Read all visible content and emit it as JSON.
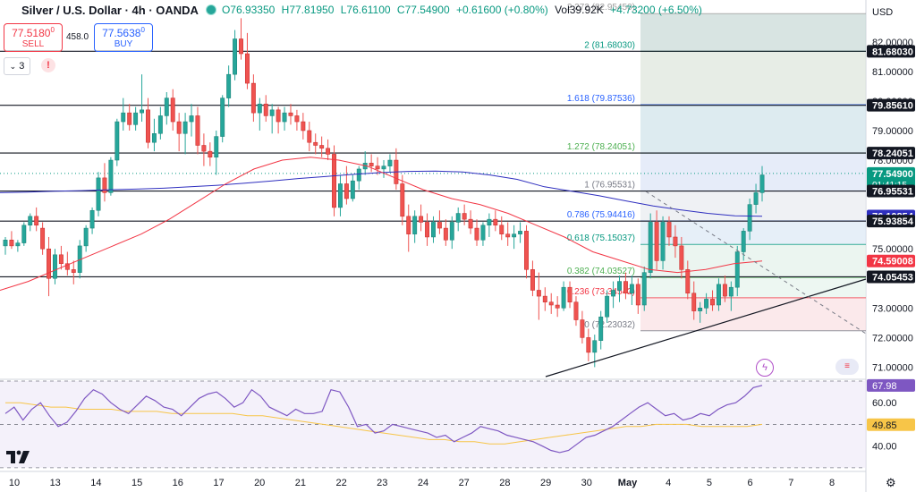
{
  "header": {
    "symbol": "Silver / U.S. Dollar · 4h · OANDA",
    "open": "O76.93350",
    "high": "H77.81950",
    "low": "L76.61100",
    "close": "C77.54900",
    "change": "+0.61600 (+0.80%)",
    "volume": "Vol39.92K",
    "volume_change": "+4.73200 (+6.50%)"
  },
  "trade": {
    "sell_price": "77.5180",
    "sell_price_sup": "0",
    "sell_label": "SELL",
    "spread": "458.0",
    "buy_price": "77.5638",
    "buy_price_sup": "0",
    "buy_label": "BUY"
  },
  "toolbar": {
    "indicators_count": "3",
    "alert_symbol": "!"
  },
  "currency": "USD",
  "colors": {
    "up": "#26a69a",
    "down": "#ef5350",
    "sma_long": "#2f2fbf",
    "sma_short": "#f23645",
    "rsi": "#7e57c2",
    "rsi_ma": "#f7c548"
  },
  "chart_data": {
    "type": "candlestick",
    "timeframe": "4h",
    "y_ticks": [
      "82.00000",
      "81.00000",
      "80.00000",
      "79.00000",
      "78.00000",
      "77.00000",
      "76.00000",
      "75.00000",
      "74.00000",
      "73.00000",
      "72.00000",
      "71.00000"
    ],
    "x_labels": [
      "10",
      "13",
      "14",
      "15",
      "16",
      "17",
      "20",
      "21",
      "22",
      "23",
      "24",
      "27",
      "28",
      "29",
      "30",
      "May",
      "4",
      "5",
      "6",
      "7",
      "8"
    ],
    "candles": [
      [
        75.1,
        75.4,
        74.8,
        75.3
      ],
      [
        75.3,
        75.6,
        75.0,
        75.1
      ],
      [
        75.1,
        75.3,
        74.9,
        75.2
      ],
      [
        75.2,
        75.9,
        75.1,
        75.8
      ],
      [
        75.8,
        76.2,
        75.6,
        76.1
      ],
      [
        76.1,
        76.4,
        75.6,
        75.8
      ],
      [
        75.7,
        75.9,
        74.8,
        75.0
      ],
      [
        75.0,
        75.4,
        73.4,
        74.0
      ],
      [
        74.0,
        75.0,
        73.8,
        74.8
      ],
      [
        74.8,
        75.1,
        74.3,
        74.5
      ],
      [
        74.5,
        74.9,
        74.1,
        74.3
      ],
      [
        74.3,
        74.6,
        73.8,
        74.2
      ],
      [
        74.2,
        75.3,
        74.0,
        75.1
      ],
      [
        75.1,
        75.8,
        74.9,
        75.7
      ],
      [
        75.7,
        76.4,
        75.5,
        76.3
      ],
      [
        76.3,
        77.6,
        76.1,
        77.4
      ],
      [
        77.4,
        77.9,
        76.6,
        76.9
      ],
      [
        76.9,
        78.1,
        76.8,
        78.0
      ],
      [
        78.0,
        79.4,
        77.8,
        79.3
      ],
      [
        79.3,
        80.1,
        79.0,
        79.6
      ],
      [
        79.6,
        79.9,
        79.0,
        79.2
      ],
      [
        79.2,
        79.8,
        79.0,
        79.6
      ],
      [
        79.6,
        80.9,
        79.3,
        79.7
      ],
      [
        79.7,
        80.1,
        78.4,
        78.6
      ],
      [
        78.6,
        79.4,
        78.3,
        78.9
      ],
      [
        78.9,
        79.8,
        78.7,
        79.5
      ],
      [
        79.5,
        80.3,
        79.2,
        80.1
      ],
      [
        80.1,
        80.4,
        79.0,
        79.3
      ],
      [
        79.3,
        79.6,
        78.3,
        78.9
      ],
      [
        78.9,
        79.6,
        78.2,
        79.3
      ],
      [
        79.3,
        79.9,
        78.8,
        79.5
      ],
      [
        79.5,
        79.8,
        78.2,
        78.5
      ],
      [
        78.5,
        78.9,
        77.8,
        78.3
      ],
      [
        78.3,
        78.6,
        77.8,
        78.1
      ],
      [
        78.1,
        79.0,
        77.5,
        78.8
      ],
      [
        78.8,
        80.2,
        78.6,
        80.1
      ],
      [
        80.1,
        81.2,
        79.8,
        80.9
      ],
      [
        80.9,
        82.4,
        80.7,
        82.1
      ],
      [
        82.1,
        82.8,
        81.4,
        81.6
      ],
      [
        81.6,
        82.3,
        80.4,
        80.6
      ],
      [
        80.6,
        80.9,
        79.3,
        79.6
      ],
      [
        79.6,
        80.1,
        79.0,
        79.9
      ],
      [
        79.9,
        80.2,
        79.3,
        79.5
      ],
      [
        79.5,
        79.9,
        78.9,
        79.7
      ],
      [
        79.7,
        79.8,
        78.9,
        79.3
      ],
      [
        79.3,
        79.8,
        79.0,
        79.6
      ],
      [
        79.6,
        79.9,
        79.2,
        79.5
      ],
      [
        79.5,
        79.7,
        79.0,
        79.3
      ],
      [
        79.3,
        79.6,
        78.7,
        79.0
      ],
      [
        79.0,
        79.3,
        78.3,
        78.6
      ],
      [
        78.6,
        78.9,
        78.2,
        78.5
      ],
      [
        78.5,
        78.8,
        78.1,
        78.4
      ],
      [
        78.4,
        78.7,
        78.0,
        78.2
      ],
      [
        78.2,
        78.5,
        76.1,
        76.4
      ],
      [
        76.4,
        77.5,
        76.1,
        77.2
      ],
      [
        77.2,
        77.8,
        76.5,
        76.7
      ],
      [
        76.7,
        77.5,
        76.6,
        77.3
      ],
      [
        77.3,
        77.8,
        77.0,
        77.7
      ],
      [
        77.7,
        78.3,
        77.5,
        77.9
      ],
      [
        77.9,
        78.2,
        77.6,
        77.8
      ],
      [
        77.8,
        78.1,
        77.5,
        77.7
      ],
      [
        77.7,
        78.0,
        77.4,
        77.8
      ],
      [
        77.8,
        78.2,
        77.6,
        78.0
      ],
      [
        78.0,
        78.4,
        77.0,
        77.2
      ],
      [
        77.2,
        77.5,
        75.8,
        76.1
      ],
      [
        76.1,
        76.5,
        74.9,
        75.5
      ],
      [
        75.5,
        76.3,
        75.2,
        76.1
      ],
      [
        76.1,
        76.5,
        75.6,
        75.9
      ],
      [
        75.9,
        76.2,
        75.1,
        75.4
      ],
      [
        75.4,
        76.1,
        75.2,
        75.9
      ],
      [
        75.9,
        76.3,
        75.5,
        75.7
      ],
      [
        75.7,
        76.0,
        75.1,
        75.3
      ],
      [
        75.3,
        76.1,
        75.0,
        75.9
      ],
      [
        75.9,
        76.4,
        75.6,
        76.2
      ],
      [
        76.2,
        76.5,
        75.8,
        76.0
      ],
      [
        76.0,
        76.3,
        75.5,
        75.7
      ],
      [
        75.7,
        76.0,
        75.1,
        75.3
      ],
      [
        75.3,
        75.9,
        75.1,
        75.8
      ],
      [
        75.8,
        76.2,
        75.4,
        76.0
      ],
      [
        76.0,
        76.3,
        75.6,
        75.8
      ],
      [
        75.8,
        76.1,
        75.3,
        75.5
      ],
      [
        75.5,
        75.9,
        75.1,
        75.4
      ],
      [
        75.4,
        75.8,
        75.0,
        75.5
      ],
      [
        75.5,
        75.9,
        75.2,
        75.6
      ],
      [
        75.6,
        75.8,
        74.0,
        74.3
      ],
      [
        74.3,
        74.6,
        73.4,
        73.6
      ],
      [
        73.6,
        74.2,
        72.6,
        73.4
      ],
      [
        73.4,
        73.7,
        72.9,
        73.2
      ],
      [
        73.2,
        73.5,
        72.8,
        73.1
      ],
      [
        73.1,
        73.4,
        72.7,
        73.0
      ],
      [
        73.0,
        73.9,
        72.9,
        73.7
      ],
      [
        73.7,
        73.9,
        73.0,
        73.2
      ],
      [
        73.2,
        73.4,
        72.4,
        72.6
      ],
      [
        72.6,
        72.9,
        71.8,
        72.0
      ],
      [
        72.0,
        72.3,
        71.2,
        71.5
      ],
      [
        71.5,
        72.1,
        71.0,
        71.9
      ],
      [
        71.9,
        72.9,
        71.6,
        72.7
      ],
      [
        72.7,
        73.6,
        72.5,
        73.4
      ],
      [
        73.4,
        73.9,
        73.0,
        73.6
      ],
      [
        73.6,
        74.1,
        73.2,
        73.9
      ],
      [
        73.9,
        74.2,
        73.3,
        73.5
      ],
      [
        73.5,
        74.1,
        73.1,
        73.8
      ],
      [
        73.8,
        74.0,
        72.8,
        73.1
      ],
      [
        73.1,
        74.4,
        72.9,
        74.2
      ],
      [
        74.2,
        76.2,
        74.0,
        75.9
      ],
      [
        75.9,
        76.3,
        74.3,
        74.6
      ],
      [
        74.6,
        76.1,
        74.3,
        75.9
      ],
      [
        75.9,
        76.1,
        75.1,
        75.4
      ],
      [
        75.4,
        75.8,
        74.7,
        75.1
      ],
      [
        75.1,
        75.4,
        74.0,
        74.3
      ],
      [
        74.3,
        74.6,
        73.3,
        73.5
      ],
      [
        73.5,
        73.9,
        72.6,
        72.9
      ],
      [
        72.9,
        73.2,
        72.5,
        73.0
      ],
      [
        73.0,
        73.5,
        72.8,
        73.3
      ],
      [
        73.3,
        73.6,
        72.9,
        73.1
      ],
      [
        73.1,
        74.0,
        72.9,
        73.8
      ],
      [
        73.8,
        74.1,
        73.2,
        73.4
      ],
      [
        73.4,
        73.9,
        72.9,
        73.7
      ],
      [
        73.7,
        75.1,
        73.4,
        74.9
      ],
      [
        74.9,
        75.7,
        74.6,
        75.6
      ],
      [
        75.6,
        76.7,
        75.3,
        76.5
      ],
      [
        76.5,
        77.2,
        76.2,
        76.9
      ],
      [
        76.9,
        77.8,
        76.6,
        77.5
      ]
    ],
    "sma_long_series": [
      76.9,
      76.92,
      76.95,
      76.97,
      77.0,
      77.02,
      77.05,
      77.1,
      77.15,
      77.22,
      77.3,
      77.38,
      77.45,
      77.52,
      77.58,
      77.62,
      77.63,
      77.6,
      77.5,
      77.35,
      77.1,
      76.95,
      76.8,
      76.62,
      76.45,
      76.32,
      76.2,
      76.12,
      76.1
    ],
    "sma_short_series": [
      73.6,
      73.9,
      74.3,
      74.7,
      75.1,
      75.5,
      76.0,
      76.6,
      77.2,
      77.7,
      78.0,
      78.1,
      78.0,
      77.8,
      77.4,
      77.0,
      76.7,
      76.5,
      76.2,
      75.8,
      75.4,
      74.9,
      74.6,
      74.3,
      74.2,
      74.3,
      74.5,
      74.59
    ],
    "current_price": "77.54900",
    "countdown": "01:41:15",
    "price_labels": [
      {
        "value": "81.68030",
        "style": "black"
      },
      {
        "value": "79.85610",
        "style": "black"
      },
      {
        "value": "78.24051",
        "style": "black"
      },
      {
        "value": "77.54900",
        "style": "green"
      },
      {
        "value": "76.95531",
        "style": "black"
      },
      {
        "value": "76.10854",
        "style": "blue"
      },
      {
        "value": "75.93854",
        "style": "black"
      },
      {
        "value": "74.59008",
        "style": "red"
      },
      {
        "value": "74.05453",
        "style": "black"
      }
    ],
    "horizontal_levels": [
      81.6803,
      79.8561,
      78.24051,
      76.95531,
      75.93854,
      74.05453
    ],
    "fibonacci": [
      {
        "ratio": "1.618",
        "label": "1.618 (79.87536)",
        "value": 79.87536,
        "color": "#2962ff"
      },
      {
        "ratio": "1.272",
        "label": "1.272 (78.24051)",
        "value": 78.24051,
        "color": "#4caf50"
      },
      {
        "ratio": "1",
        "label": "1 (76.95531)",
        "value": 76.95531,
        "color": "#787b86"
      },
      {
        "ratio": "0.786",
        "label": "0.786 (75.94416)",
        "value": 75.94416,
        "color": "#2962ff"
      },
      {
        "ratio": "0.618",
        "label": "0.618 (75.15037)",
        "value": 75.15037,
        "color": "#089981"
      },
      {
        "ratio": "0.382",
        "label": "0.382 (74.03527)",
        "value": 74.03527,
        "color": "#4caf50"
      },
      {
        "ratio": "0.236",
        "label": "0.236 (73.34542)",
        "value": 73.34542,
        "color": "#f23645"
      },
      {
        "ratio": "0",
        "label": "0 (72.23032)",
        "value": 72.23032,
        "color": "#787b86"
      },
      {
        "ratio": "2",
        "label": "2 (81.68030)",
        "value": 81.6803,
        "color": "#089981"
      },
      {
        "ratio": "2.272",
        "label": "2.272 (82.95450)",
        "value": 82.9545,
        "color": "#9e9e9e"
      }
    ],
    "rsi": {
      "ticks": [
        "60.00",
        "50.00",
        "40.00"
      ],
      "current": "67.98",
      "ma_current": "49.85",
      "series": [
        55,
        58,
        52,
        57,
        60,
        54,
        49,
        51,
        56,
        62,
        66,
        64,
        60,
        57,
        55,
        59,
        63,
        61,
        58,
        57,
        54,
        58,
        62,
        64,
        65,
        62,
        58,
        60,
        66,
        63,
        58,
        56,
        54,
        57,
        55,
        55,
        56,
        66,
        65,
        58,
        49,
        50,
        46,
        47,
        50,
        49,
        48,
        47,
        46,
        44,
        45,
        42,
        44,
        46,
        49,
        48,
        47,
        45,
        44,
        43,
        42,
        40,
        38,
        37,
        38,
        41,
        44,
        45,
        47,
        49,
        52,
        55,
        58,
        60,
        57,
        54,
        55,
        52,
        53,
        55,
        54,
        57,
        59,
        60,
        63,
        67,
        68
      ],
      "ma_series": [
        60,
        60,
        59,
        58,
        58,
        57,
        57,
        57,
        56,
        56,
        56,
        55,
        55,
        55,
        55,
        55,
        54,
        54,
        53,
        52,
        51,
        50,
        49,
        48,
        47,
        46,
        45,
        44,
        43,
        43,
        42,
        42,
        41,
        41,
        42,
        43,
        44,
        45,
        46,
        47,
        48,
        49,
        49,
        50,
        50,
        50,
        49,
        49,
        49,
        49,
        50
      ]
    }
  }
}
